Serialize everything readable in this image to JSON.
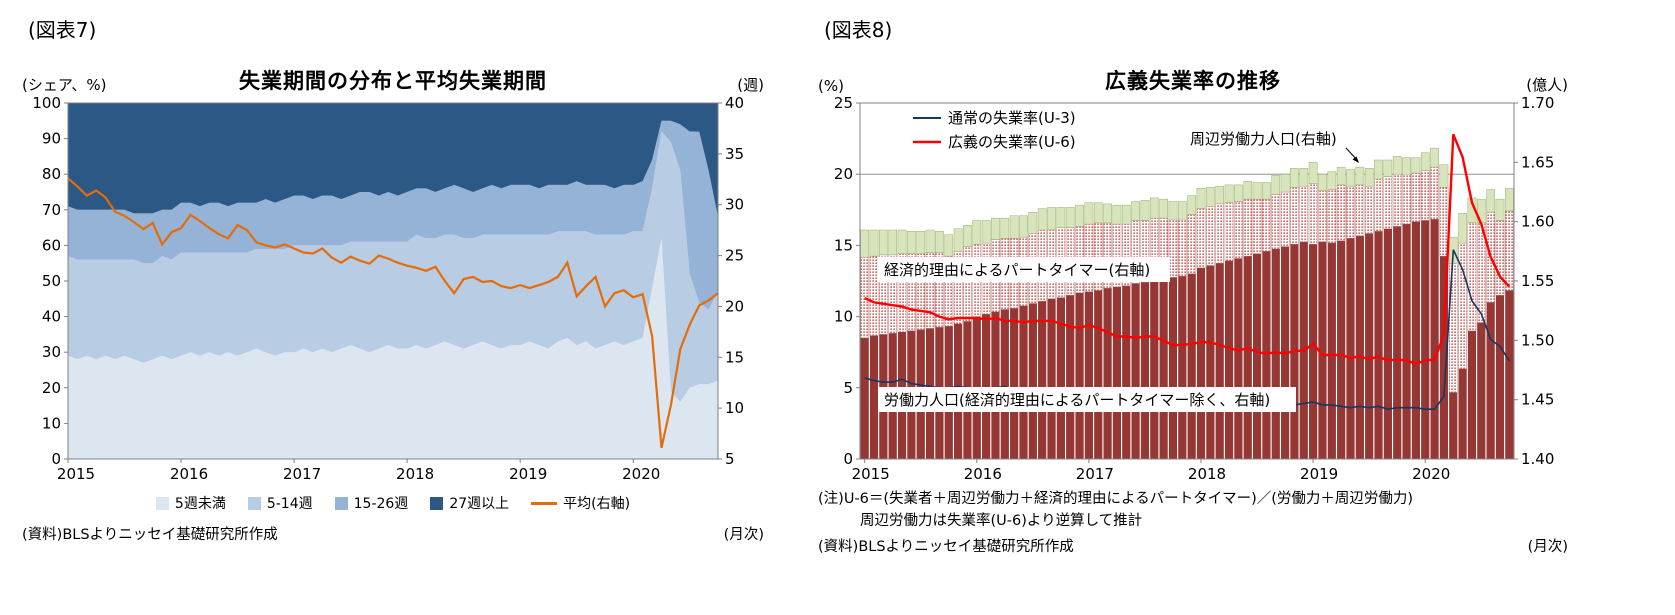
{
  "figures": [
    {
      "id": "fig7",
      "label": "(図表7)",
      "title": "失業期間の分布と平均失業期間",
      "unit_left": "(シェア、%)",
      "unit_right": "(週)",
      "source": "(資料)BLSよりニッセイ基礎研究所作成",
      "frequency": "(月次)"
    },
    {
      "id": "fig8",
      "label": "(図表8)",
      "title": "広義失業率の推移",
      "unit_left": "(%)",
      "unit_right": "(億人)",
      "note1": "(注)U-6＝(失業者＋周辺労働力＋経済的理由によるパートタイマー)／(労働力＋周辺労働力)",
      "note2": "周辺労働力は失業率(U-6)より逆算して推計",
      "source": "(資料)BLSよりニッセイ基礎研究所作成",
      "frequency": "(月次)"
    }
  ],
  "chart_data": [
    {
      "type": "area",
      "title": "失業期間の分布と平均失業期間",
      "x": {
        "start": "2015-01",
        "end": "2020-10",
        "frequency": "monthly",
        "tick_labels": [
          "2015",
          "2016",
          "2017",
          "2018",
          "2019",
          "2020"
        ],
        "tick_indices": [
          0,
          12,
          24,
          36,
          48,
          60
        ]
      },
      "axis_left": {
        "label": "シェア、%",
        "min": 0,
        "max": 100,
        "step": 10
      },
      "axis_right": {
        "label": "週",
        "min": 5,
        "max": 40,
        "step": 5
      },
      "series": [
        {
          "name": "5週未満",
          "kind": "stacked_area",
          "axis": "left",
          "color": "#dce6f1",
          "values": [
            29,
            28,
            29,
            28,
            29,
            28,
            29,
            28,
            27,
            28,
            29,
            28,
            29,
            30,
            29,
            30,
            29,
            30,
            29,
            30,
            31,
            30,
            29,
            30,
            30,
            31,
            30,
            31,
            30,
            31,
            32,
            31,
            30,
            31,
            32,
            31,
            31,
            32,
            31,
            32,
            33,
            32,
            31,
            32,
            33,
            32,
            31,
            32,
            32,
            33,
            32,
            31,
            33,
            34,
            32,
            33,
            31,
            32,
            33,
            32,
            33,
            34,
            48,
            62,
            19,
            16,
            20,
            21,
            21,
            22
          ]
        },
        {
          "name": "5-14週",
          "kind": "stacked_area",
          "axis": "left",
          "color": "#b8cce4",
          "values": [
            28,
            28,
            27,
            28,
            27,
            28,
            27,
            28,
            28,
            27,
            28,
            28,
            29,
            28,
            29,
            28,
            29,
            28,
            29,
            28,
            28,
            29,
            30,
            29,
            30,
            29,
            30,
            29,
            30,
            29,
            29,
            30,
            31,
            30,
            29,
            30,
            30,
            31,
            31,
            30,
            30,
            31,
            31,
            30,
            30,
            31,
            32,
            31,
            31,
            30,
            31,
            32,
            31,
            30,
            32,
            31,
            32,
            31,
            30,
            31,
            31,
            30,
            28,
            30,
            70,
            65,
            32,
            23,
            21,
            25
          ]
        },
        {
          "name": "15-26週",
          "kind": "stacked_area",
          "axis": "left",
          "color": "#95b3d7",
          "values": [
            14,
            14,
            14,
            14,
            14,
            14,
            14,
            13,
            14,
            14,
            13,
            14,
            14,
            14,
            13,
            14,
            14,
            13,
            14,
            14,
            13,
            14,
            13,
            14,
            14,
            14,
            13,
            14,
            14,
            13,
            13,
            14,
            14,
            13,
            14,
            13,
            14,
            13,
            14,
            13,
            13,
            14,
            14,
            13,
            13,
            14,
            13,
            14,
            14,
            14,
            13,
            14,
            13,
            13,
            14,
            13,
            14,
            14,
            13,
            14,
            13,
            14,
            8,
            3,
            6,
            13,
            40,
            48,
            39,
            21
          ]
        },
        {
          "name": "27週以上",
          "kind": "stacked_area",
          "axis": "left",
          "color": "#2b5884",
          "values": [
            29,
            30,
            30,
            30,
            30,
            30,
            30,
            31,
            31,
            31,
            30,
            30,
            28,
            28,
            29,
            28,
            28,
            29,
            28,
            28,
            28,
            27,
            28,
            27,
            26,
            26,
            27,
            26,
            26,
            27,
            26,
            25,
            25,
            26,
            25,
            26,
            25,
            24,
            24,
            25,
            24,
            23,
            24,
            25,
            24,
            23,
            24,
            23,
            23,
            23,
            24,
            23,
            23,
            23,
            22,
            23,
            23,
            23,
            24,
            23,
            23,
            22,
            16,
            5,
            5,
            6,
            8,
            8,
            19,
            32
          ]
        },
        {
          "name": "平均(右軸)",
          "kind": "line",
          "axis": "right",
          "color": "#e46c0a",
          "values": [
            32.6,
            31.8,
            30.9,
            31.4,
            30.7,
            29.3,
            28.9,
            28.3,
            27.6,
            28.2,
            26.1,
            27.3,
            27.7,
            29.0,
            28.4,
            27.7,
            27.1,
            26.7,
            28.0,
            27.5,
            26.3,
            26.0,
            25.8,
            26.1,
            25.7,
            25.3,
            25.2,
            25.7,
            24.8,
            24.3,
            24.9,
            24.5,
            24.2,
            25.0,
            24.7,
            24.3,
            24.0,
            23.8,
            23.5,
            23.9,
            22.5,
            21.3,
            22.7,
            22.9,
            22.4,
            22.5,
            22.0,
            21.8,
            22.1,
            21.8,
            22.1,
            22.4,
            22.9,
            24.3,
            21.0,
            22.0,
            22.9,
            20.0,
            21.3,
            21.6,
            20.9,
            21.2,
            17.1,
            6.1,
            10.3,
            15.8,
            18.2,
            20.1,
            20.6,
            21.3
          ]
        }
      ]
    },
    {
      "type": "bar",
      "title": "広義失業率の推移",
      "x": {
        "start": "2015-01",
        "end": "2020-10",
        "frequency": "monthly",
        "tick_labels": [
          "2015",
          "2016",
          "2017",
          "2018",
          "2019",
          "2020"
        ],
        "tick_indices": [
          0,
          12,
          24,
          36,
          48,
          60
        ]
      },
      "axis_left": {
        "label": "%",
        "min": 0,
        "max": 25,
        "step": 5
      },
      "axis_right": {
        "label": "億人",
        "min": 1.4,
        "max": 1.7,
        "step": 0.05
      },
      "gridline_left": 20,
      "series": [
        {
          "name": "労働力人口(経済的理由によるパートタイマー除く、右軸)",
          "kind": "stacked_bar",
          "axis": "right",
          "color": "#953735",
          "values": [
            1.502,
            1.504,
            1.505,
            1.506,
            1.507,
            1.508,
            1.509,
            1.51,
            1.511,
            1.512,
            1.514,
            1.516,
            1.52,
            1.522,
            1.524,
            1.526,
            1.527,
            1.529,
            1.531,
            1.533,
            1.535,
            1.536,
            1.538,
            1.54,
            1.541,
            1.542,
            1.544,
            1.545,
            1.546,
            1.548,
            1.549,
            1.55,
            1.552,
            1.553,
            1.554,
            1.556,
            1.561,
            1.563,
            1.565,
            1.567,
            1.569,
            1.571,
            1.573,
            1.575,
            1.577,
            1.579,
            1.581,
            1.583,
            1.581,
            1.583,
            1.582,
            1.584,
            1.586,
            1.588,
            1.59,
            1.592,
            1.594,
            1.596,
            1.598,
            1.6,
            1.601,
            1.602,
            1.571,
            1.456,
            1.476,
            1.508,
            1.515,
            1.532,
            1.538,
            1.542
          ]
        },
        {
          "name": "経済的理由によるパートタイマー(右軸)",
          "kind": "stacked_bar",
          "axis": "right",
          "color": "#c0504d",
          "pattern": "dots",
          "values": [
            0.068,
            0.067,
            0.067,
            0.066,
            0.066,
            0.065,
            0.064,
            0.064,
            0.063,
            0.059,
            0.061,
            0.063,
            0.061,
            0.06,
            0.061,
            0.06,
            0.059,
            0.058,
            0.059,
            0.06,
            0.058,
            0.059,
            0.057,
            0.056,
            0.057,
            0.057,
            0.055,
            0.053,
            0.052,
            0.053,
            0.052,
            0.053,
            0.051,
            0.049,
            0.048,
            0.05,
            0.05,
            0.05,
            0.05,
            0.049,
            0.048,
            0.048,
            0.046,
            0.044,
            0.046,
            0.046,
            0.048,
            0.047,
            0.051,
            0.043,
            0.045,
            0.047,
            0.044,
            0.043,
            0.04,
            0.044,
            0.044,
            0.044,
            0.042,
            0.041,
            0.042,
            0.044,
            0.058,
            0.109,
            0.106,
            0.091,
            0.084,
            0.076,
            0.063,
            0.067
          ]
        },
        {
          "name": "周辺労働力人口(右軸)",
          "kind": "stacked_bar",
          "axis": "right",
          "color": "#d8e4bc",
          "values": [
            0.023,
            0.022,
            0.021,
            0.021,
            0.02,
            0.019,
            0.019,
            0.019,
            0.018,
            0.018,
            0.019,
            0.018,
            0.02,
            0.019,
            0.018,
            0.017,
            0.019,
            0.018,
            0.018,
            0.018,
            0.019,
            0.017,
            0.017,
            0.018,
            0.018,
            0.017,
            0.016,
            0.016,
            0.016,
            0.016,
            0.017,
            0.017,
            0.016,
            0.015,
            0.015,
            0.016,
            0.017,
            0.016,
            0.015,
            0.015,
            0.014,
            0.015,
            0.014,
            0.014,
            0.016,
            0.015,
            0.016,
            0.015,
            0.018,
            0.014,
            0.015,
            0.015,
            0.014,
            0.015,
            0.015,
            0.016,
            0.014,
            0.015,
            0.014,
            0.013,
            0.015,
            0.016,
            0.019,
            0.022,
            0.025,
            0.021,
            0.02,
            0.019,
            0.018,
            0.019
          ]
        },
        {
          "name": "通常の失業率(U-3)",
          "kind": "line",
          "axis": "left",
          "color": "#17375e",
          "values": [
            5.7,
            5.5,
            5.4,
            5.4,
            5.6,
            5.3,
            5.2,
            5.1,
            5.0,
            5.0,
            5.1,
            5.0,
            4.8,
            4.9,
            5.0,
            5.1,
            4.8,
            4.9,
            4.8,
            4.9,
            5.0,
            4.9,
            4.7,
            4.7,
            4.7,
            4.6,
            4.4,
            4.5,
            4.4,
            4.3,
            4.3,
            4.4,
            4.3,
            4.2,
            4.2,
            4.1,
            4.0,
            4.1,
            4.0,
            4.0,
            3.8,
            4.0,
            3.8,
            3.8,
            3.7,
            3.8,
            3.8,
            3.9,
            4.0,
            3.8,
            3.8,
            3.7,
            3.6,
            3.7,
            3.6,
            3.7,
            3.5,
            3.6,
            3.6,
            3.6,
            3.5,
            3.5,
            4.4,
            14.7,
            13.3,
            11.1,
            10.2,
            8.4,
            7.9,
            6.9
          ]
        },
        {
          "name": "広義の失業率(U-6)",
          "kind": "line",
          "axis": "left",
          "color": "#ff0000",
          "values": [
            11.3,
            11.0,
            10.9,
            10.8,
            10.7,
            10.5,
            10.4,
            10.3,
            10.0,
            9.8,
            9.9,
            9.9,
            9.9,
            9.8,
            9.9,
            9.7,
            9.7,
            9.6,
            9.7,
            9.7,
            9.7,
            9.5,
            9.3,
            9.2,
            9.4,
            9.2,
            8.9,
            8.6,
            8.6,
            8.5,
            8.6,
            8.6,
            8.3,
            8.0,
            8.0,
            8.1,
            8.2,
            8.2,
            8.0,
            7.8,
            7.6,
            7.8,
            7.5,
            7.4,
            7.5,
            7.4,
            7.6,
            7.6,
            8.1,
            7.3,
            7.3,
            7.3,
            7.1,
            7.2,
            7.0,
            7.2,
            6.9,
            7.0,
            6.9,
            6.7,
            6.9,
            7.0,
            8.7,
            22.8,
            21.2,
            18.0,
            16.5,
            14.2,
            12.8,
            12.1
          ]
        }
      ],
      "annotations": {
        "legend_u3": "通常の失業率(U-3)",
        "legend_u6": "広義の失業率(U-6)",
        "callout_marginal": "周辺労働力人口(右軸)",
        "box_parttime": "経済的理由によるパートタイマー(右軸)",
        "box_laborforce": "労働力人口(経済的理由によるパートタイマー除く、右軸)"
      }
    }
  ]
}
